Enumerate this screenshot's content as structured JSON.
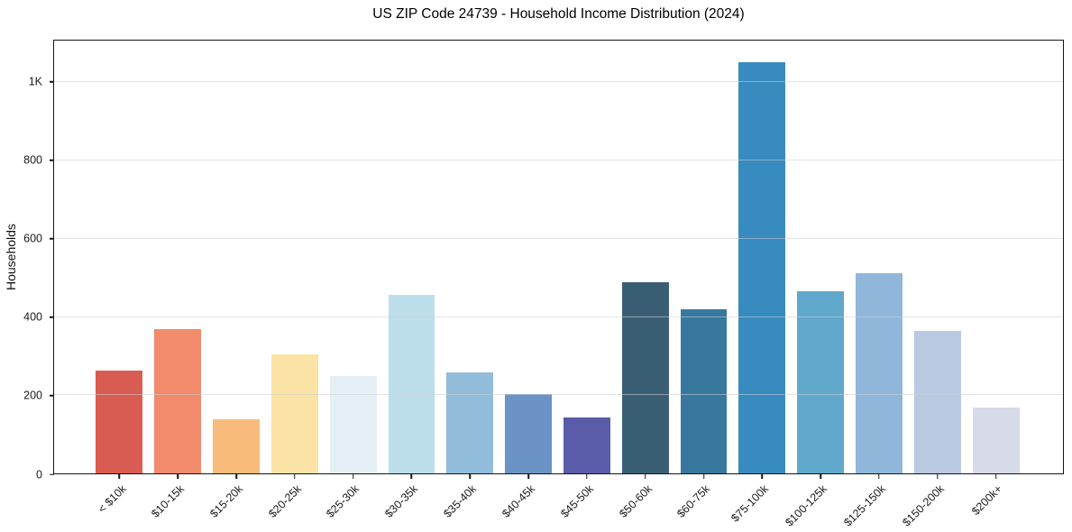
{
  "chart_data": {
    "type": "bar",
    "title": "US ZIP Code 24739 - Household Income Distribution (2024)",
    "xlabel": "",
    "ylabel": "Households",
    "categories": [
      "< $10k",
      "$10-15k",
      "$15-20k",
      "$20-25k",
      "$25-30k",
      "$30-35k",
      "$35-40k",
      "$40-45k",
      "$45-50k",
      "$50-60k",
      "$60-75k",
      "$75-100k",
      "$100-125k",
      "$125-150k",
      "$150-200k",
      "$200k+"
    ],
    "values": [
      263,
      370,
      138,
      305,
      248,
      457,
      259,
      202,
      144,
      488,
      419,
      1051,
      465,
      513,
      364,
      169
    ],
    "bar_colors": [
      "#d95c52",
      "#f28a6c",
      "#f9bb7c",
      "#fbe3a5",
      "#e4f0f6",
      "#bcdfeb",
      "#91bcda",
      "#6c93c5",
      "#5a5ca9",
      "#3a5f74",
      "#38789f",
      "#388bbe",
      "#60a8cc",
      "#90b7da",
      "#b9c9e1",
      "#d7dae8"
    ],
    "ylim": [
      0,
      1107
    ],
    "yticks": [
      {
        "value": 0,
        "label": "0"
      },
      {
        "value": 200,
        "label": "200"
      },
      {
        "value": 400,
        "label": "400"
      },
      {
        "value": 600,
        "label": "600"
      },
      {
        "value": 800,
        "label": "800"
      },
      {
        "value": 1000,
        "label": "1K"
      }
    ],
    "grid": "horizontal",
    "grid_color": "rgba(208,208,214,0.55)",
    "legend": "none",
    "spine_color": "#151515",
    "background_color": "#ffffff",
    "text_color": "#1a1a1a"
  }
}
